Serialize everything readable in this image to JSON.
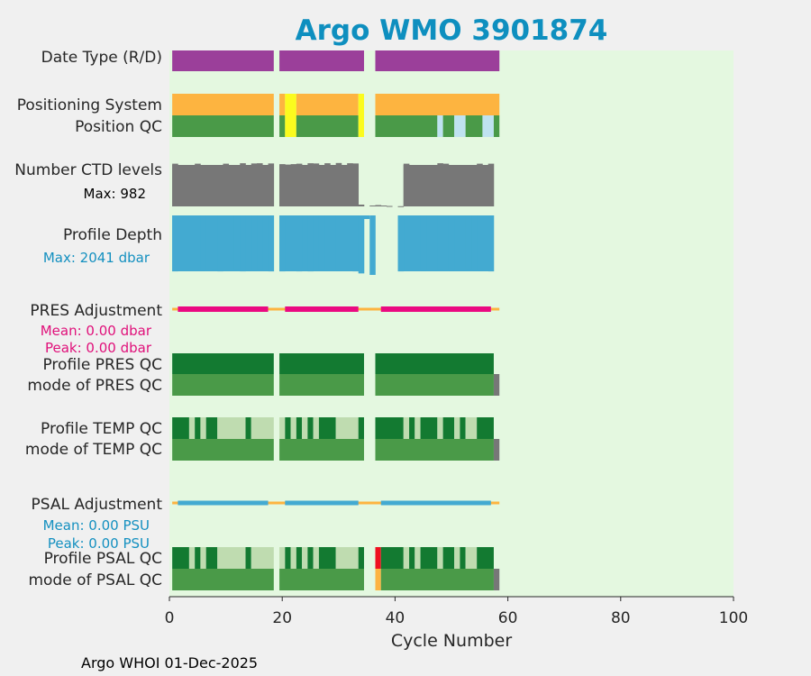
{
  "colors": {
    "background": "#f0f0f0",
    "plot_bg": "#e4f8e0",
    "title": "#0e8fbf",
    "purple": "#9b3f9a",
    "orange": "#fdb440",
    "yellow": "#fbfb1e",
    "green_mid": "#4a9a48",
    "green_dark": "#137a31",
    "green_light": "#bfdcb0",
    "light_blue": "#bfe2f0",
    "gray": "#777777",
    "blue": "#43aad1",
    "pink": "#ea0a81",
    "red": "#ef1020",
    "pres_text": "#e0107a",
    "psal_text": "#1490c0"
  },
  "chart_data": {
    "type": "timeline",
    "title": "Argo WMO 3901874",
    "xlabel": "Cycle Number",
    "xlim": [
      0,
      100
    ],
    "xticks": [
      0,
      20,
      40,
      60,
      80,
      100
    ],
    "rows": [
      {
        "id": "date_type",
        "label": "Date Type (R/D)"
      },
      {
        "id": "positioning_system",
        "label": "Positioning System"
      },
      {
        "id": "position_qc",
        "label": "Position QC"
      },
      {
        "id": "n_ctd_levels",
        "label": "Number CTD levels",
        "note": "Max: 982"
      },
      {
        "id": "profile_depth",
        "label": "Profile Depth",
        "note": "Max: 2041 dbar"
      },
      {
        "id": "pres_adjustment",
        "label": "PRES Adjustment",
        "mean": "Mean: 0.00 dbar",
        "peak": "Peak: 0.00 dbar"
      },
      {
        "id": "profile_pres_qc",
        "label": "Profile PRES QC"
      },
      {
        "id": "mode_pres_qc",
        "label": "mode of PRES QC"
      },
      {
        "id": "profile_temp_qc",
        "label": "Profile TEMP QC"
      },
      {
        "id": "mode_temp_qc",
        "label": "mode of TEMP QC"
      },
      {
        "id": "psal_adjustment",
        "label": "PSAL Adjustment",
        "mean": "Mean: 0.00 PSU",
        "peak": "Peak: 0.00 PSU"
      },
      {
        "id": "profile_psal_qc",
        "label": "Profile PSAL QC"
      },
      {
        "id": "mode_psal_qc",
        "label": "mode of PSAL QC"
      }
    ],
    "segments": {
      "date_type": [
        [
          0.5,
          18.5,
          "purple"
        ],
        [
          19.5,
          34.5,
          "purple"
        ],
        [
          36.5,
          58.5,
          "purple"
        ]
      ],
      "positioning_system": [
        [
          0.5,
          18.5,
          "orange"
        ],
        [
          19.5,
          20.5,
          "orange"
        ],
        [
          20.5,
          22.5,
          "yellow"
        ],
        [
          22.5,
          33.5,
          "orange"
        ],
        [
          33.5,
          34.5,
          "yellow"
        ],
        [
          36.5,
          58.5,
          "orange"
        ]
      ],
      "position_qc": [
        [
          0.5,
          18.5,
          "green_mid"
        ],
        [
          19.5,
          20.5,
          "green_mid"
        ],
        [
          20.5,
          22.5,
          "yellow"
        ],
        [
          22.5,
          33.5,
          "green_mid"
        ],
        [
          33.5,
          34.5,
          "yellow"
        ],
        [
          36.5,
          47.5,
          "green_mid"
        ],
        [
          47.5,
          48.5,
          "light_blue"
        ],
        [
          48.5,
          50.5,
          "green_mid"
        ],
        [
          50.5,
          52.5,
          "light_blue"
        ],
        [
          52.5,
          55.5,
          "green_mid"
        ],
        [
          55.5,
          57.5,
          "light_blue"
        ],
        [
          57.5,
          58.5,
          "green_mid"
        ]
      ],
      "profile_pres_qc": [
        [
          0.5,
          18.5,
          "green_dark"
        ],
        [
          19.5,
          34.5,
          "green_dark"
        ],
        [
          36.5,
          57.5,
          "green_dark"
        ]
      ],
      "mode_pres_qc": [
        [
          0.5,
          18.5,
          "green_mid"
        ],
        [
          19.5,
          34.5,
          "green_mid"
        ],
        [
          36.5,
          57.5,
          "green_mid"
        ],
        [
          57.5,
          58.5,
          "gray"
        ]
      ],
      "profile_temp_qc": [
        [
          0.5,
          3.5,
          "green_dark"
        ],
        [
          3.5,
          4.5,
          "green_light"
        ],
        [
          4.5,
          5.5,
          "green_dark"
        ],
        [
          5.5,
          6.5,
          "green_light"
        ],
        [
          6.5,
          8.5,
          "green_dark"
        ],
        [
          8.5,
          13.5,
          "green_light"
        ],
        [
          13.5,
          14.5,
          "green_dark"
        ],
        [
          14.5,
          18.5,
          "green_light"
        ],
        [
          19.5,
          20.5,
          "green_light"
        ],
        [
          20.5,
          21.5,
          "green_dark"
        ],
        [
          21.5,
          22.5,
          "green_light"
        ],
        [
          22.5,
          23.5,
          "green_dark"
        ],
        [
          23.5,
          24.5,
          "green_light"
        ],
        [
          24.5,
          25.5,
          "green_dark"
        ],
        [
          25.5,
          26.5,
          "green_light"
        ],
        [
          26.5,
          29.5,
          "green_dark"
        ],
        [
          29.5,
          33.5,
          "green_light"
        ],
        [
          33.5,
          34.5,
          "green_dark"
        ],
        [
          36.5,
          41.5,
          "green_dark"
        ],
        [
          41.5,
          42.5,
          "green_light"
        ],
        [
          42.5,
          43.5,
          "green_dark"
        ],
        [
          43.5,
          44.5,
          "green_light"
        ],
        [
          44.5,
          47.5,
          "green_dark"
        ],
        [
          47.5,
          48.5,
          "green_light"
        ],
        [
          48.5,
          50.5,
          "green_dark"
        ],
        [
          50.5,
          51.5,
          "green_light"
        ],
        [
          51.5,
          52.5,
          "green_dark"
        ],
        [
          52.5,
          54.5,
          "green_light"
        ],
        [
          54.5,
          57.5,
          "green_dark"
        ]
      ],
      "mode_temp_qc": [
        [
          0.5,
          18.5,
          "green_mid"
        ],
        [
          19.5,
          34.5,
          "green_mid"
        ],
        [
          36.5,
          57.5,
          "green_mid"
        ],
        [
          57.5,
          58.5,
          "gray"
        ]
      ],
      "profile_psal_qc": [
        [
          0.5,
          3.5,
          "green_dark"
        ],
        [
          3.5,
          4.5,
          "green_light"
        ],
        [
          4.5,
          5.5,
          "green_dark"
        ],
        [
          5.5,
          6.5,
          "green_light"
        ],
        [
          6.5,
          8.5,
          "green_dark"
        ],
        [
          8.5,
          13.5,
          "green_light"
        ],
        [
          13.5,
          14.5,
          "green_dark"
        ],
        [
          14.5,
          18.5,
          "green_light"
        ],
        [
          19.5,
          20.5,
          "green_light"
        ],
        [
          20.5,
          21.5,
          "green_dark"
        ],
        [
          21.5,
          22.5,
          "green_light"
        ],
        [
          22.5,
          23.5,
          "green_dark"
        ],
        [
          23.5,
          24.5,
          "green_light"
        ],
        [
          24.5,
          25.5,
          "green_dark"
        ],
        [
          25.5,
          26.5,
          "green_light"
        ],
        [
          26.5,
          29.5,
          "green_dark"
        ],
        [
          29.5,
          33.5,
          "green_light"
        ],
        [
          33.5,
          34.5,
          "green_dark"
        ],
        [
          36.5,
          37.5,
          "red"
        ],
        [
          37.5,
          41.5,
          "green_dark"
        ],
        [
          41.5,
          42.5,
          "green_light"
        ],
        [
          42.5,
          43.5,
          "green_dark"
        ],
        [
          43.5,
          44.5,
          "green_light"
        ],
        [
          44.5,
          47.5,
          "green_dark"
        ],
        [
          47.5,
          48.5,
          "green_light"
        ],
        [
          48.5,
          50.5,
          "green_dark"
        ],
        [
          50.5,
          51.5,
          "green_light"
        ],
        [
          51.5,
          52.5,
          "green_dark"
        ],
        [
          52.5,
          54.5,
          "green_light"
        ],
        [
          54.5,
          57.5,
          "green_dark"
        ]
      ],
      "mode_psal_qc": [
        [
          0.5,
          18.5,
          "green_mid"
        ],
        [
          19.5,
          34.5,
          "green_mid"
        ],
        [
          36.5,
          37.5,
          "orange"
        ],
        [
          37.5,
          57.5,
          "green_mid"
        ],
        [
          57.5,
          58.5,
          "gray"
        ]
      ]
    },
    "adjustment_lines": {
      "pres_adjustment": {
        "color": "pink",
        "range": [
          0.5,
          58.5
        ],
        "segments": [
          [
            1.5,
            17.5
          ],
          [
            20.5,
            33.5
          ],
          [
            37.5,
            57.0
          ]
        ]
      },
      "psal_adjustment": {
        "color": "blue",
        "range": [
          0.5,
          58.5
        ],
        "segments": [
          [
            1.5,
            17.5
          ],
          [
            20.5,
            33.5
          ],
          [
            37.5,
            57.0
          ]
        ]
      }
    },
    "n_ctd_levels": {
      "max": 982,
      "values": [
        [
          1,
          950
        ],
        [
          5,
          950
        ],
        [
          10,
          950
        ],
        [
          13,
          960
        ],
        [
          15,
          955
        ],
        [
          16,
          960
        ],
        [
          18,
          955
        ],
        [
          20,
          940
        ],
        [
          21,
          930
        ],
        [
          22,
          940
        ],
        [
          23,
          950
        ],
        [
          25,
          960
        ],
        [
          26,
          955
        ],
        [
          28,
          960
        ],
        [
          30,
          965
        ],
        [
          32,
          960
        ],
        [
          33,
          955
        ],
        [
          34,
          40
        ],
        [
          36,
          20
        ],
        [
          37,
          30
        ],
        [
          38,
          20
        ],
        [
          39,
          10
        ],
        [
          41,
          5
        ],
        [
          42,
          950
        ],
        [
          48,
          960
        ],
        [
          49,
          950
        ],
        [
          55,
          950
        ],
        [
          57,
          950
        ]
      ]
    },
    "profile_depth": {
      "max_dbar": 2041,
      "values": [
        [
          1,
          1920
        ],
        [
          6,
          1900
        ],
        [
          8,
          1860
        ],
        [
          9,
          1920
        ],
        [
          12,
          1880
        ],
        [
          13,
          1920
        ],
        [
          14,
          1900
        ],
        [
          16,
          1880
        ],
        [
          18,
          1920
        ],
        [
          20,
          1920
        ],
        [
          22,
          1860
        ],
        [
          23,
          1920
        ],
        [
          24,
          1800
        ],
        [
          25,
          1920
        ],
        [
          27,
          1880
        ],
        [
          30,
          1900
        ],
        [
          33,
          1920
        ],
        [
          34,
          1990
        ],
        [
          36,
          2041
        ],
        [
          41,
          1920
        ],
        [
          45,
          1900
        ],
        [
          48,
          1880
        ],
        [
          50,
          1900
        ],
        [
          53,
          1880
        ],
        [
          55,
          1900
        ],
        [
          57,
          1920
        ]
      ]
    },
    "footer": "Argo WHOI 01-Dec-2025"
  }
}
